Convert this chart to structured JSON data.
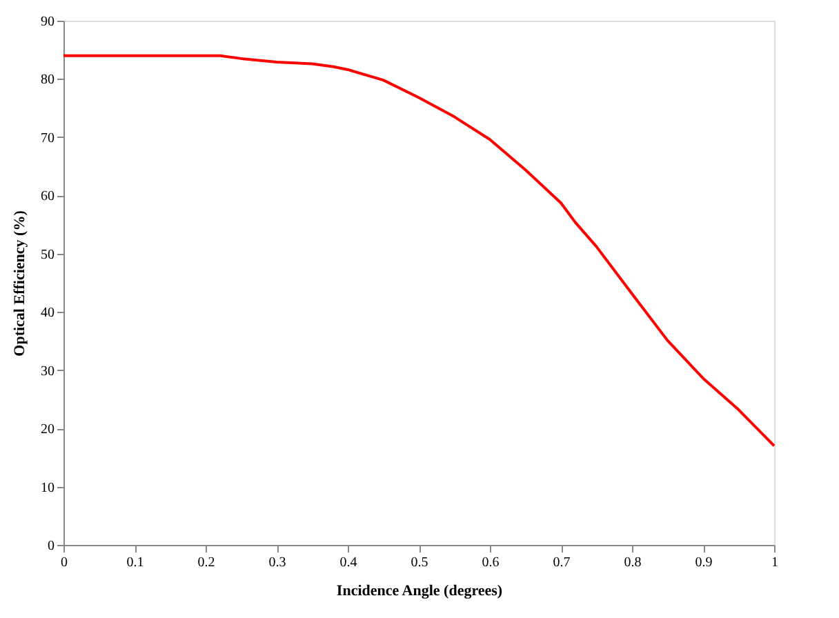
{
  "chart_data": {
    "type": "line",
    "xlabel": "Incidence Angle (degrees)",
    "ylabel": "Optical Efficiency (%)",
    "x": [
      0,
      0.1,
      0.22,
      0.25,
      0.3,
      0.35,
      0.38,
      0.4,
      0.45,
      0.5,
      0.55,
      0.6,
      0.65,
      0.7,
      0.72,
      0.75,
      0.8,
      0.85,
      0.9,
      0.95,
      1.0
    ],
    "series": [
      {
        "color": "#ff0000",
        "values": [
          84,
          84,
          84,
          83.5,
          82.9,
          82.6,
          82.1,
          81.6,
          79.8,
          76.8,
          73.5,
          69.6,
          64.4,
          58.7,
          55.4,
          51.2,
          43.1,
          35.1,
          28.6,
          23.2,
          17.0
        ]
      }
    ],
    "xlim": [
      0,
      1
    ],
    "xticks": [
      0,
      0.1,
      0.2,
      0.3,
      0.4,
      0.5,
      0.6,
      0.7,
      0.8,
      0.9,
      1
    ],
    "ylim": [
      0,
      90
    ],
    "yticks": [
      0,
      10,
      20,
      30,
      40,
      50,
      60,
      70,
      80,
      90
    ],
    "grid": false,
    "legend": false,
    "marker": "none",
    "line_style": "solid"
  }
}
